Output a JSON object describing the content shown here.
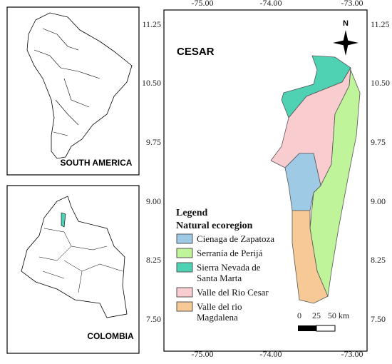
{
  "inset_south_america": {
    "label": "SOUTH AMERICA"
  },
  "inset_colombia": {
    "label": "COLOMBIA"
  },
  "main_map": {
    "title": "CESAR",
    "north": "N",
    "longitude_labels": [
      "-75.00",
      "-74.00",
      "-73.00"
    ],
    "latitude_labels": [
      "11.25",
      "10.50",
      "9.75",
      "9.00",
      "8.25",
      "7.50"
    ],
    "scale_labels": [
      "0",
      "25",
      "50 km"
    ]
  },
  "legend": {
    "title": "Legend",
    "subtitle": "Natural ecoregion",
    "items": [
      {
        "label": [
          "Cienaga de Zapatoza"
        ],
        "color": "#9ecae6"
      },
      {
        "label": [
          "Serranía de Perijá"
        ],
        "color": "#bff49a"
      },
      {
        "label": [
          "Sierra Nevada de",
          "Santa Marta"
        ],
        "color": "#4fd1b4"
      },
      {
        "label": [
          "Valle del Rio Cesar"
        ],
        "color": "#f9cdd0"
      },
      {
        "label": [
          "Valle del rio",
          "Magdalena"
        ],
        "color": "#f7c996"
      }
    ]
  }
}
